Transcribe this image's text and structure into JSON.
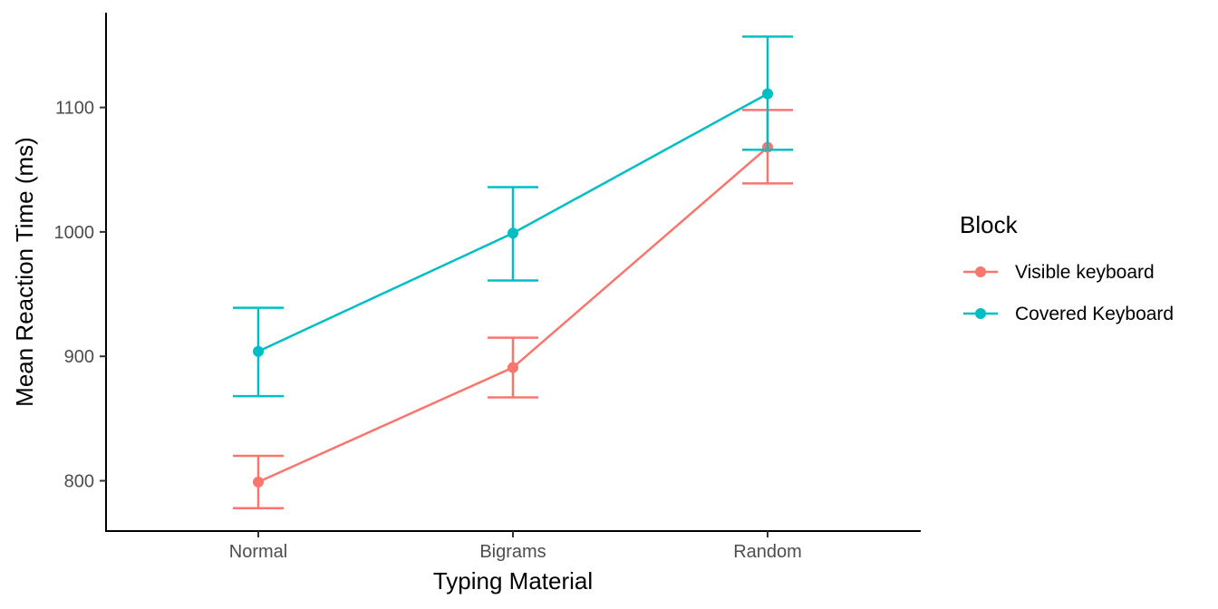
{
  "chart_data": {
    "type": "line",
    "title": "",
    "xlabel": "Typing Material",
    "ylabel": "Mean Reaction Time (ms)",
    "categories": [
      "Normal",
      "Bigrams",
      "Random"
    ],
    "ylim": [
      760,
      1160
    ],
    "yticks": [
      800,
      900,
      1000,
      1100
    ],
    "grid": false,
    "legend": {
      "title": "Block",
      "position": "right"
    },
    "series": [
      {
        "name": "Visible keyboard",
        "color": "#F8766D",
        "values": [
          799,
          891,
          1068
        ],
        "error_low": [
          778,
          867,
          1039
        ],
        "error_high": [
          820,
          915,
          1098
        ]
      },
      {
        "name": "Covered Keyboard",
        "color": "#00BFC4",
        "values": [
          904,
          999,
          1111
        ],
        "error_low": [
          868,
          961,
          1066
        ],
        "error_high": [
          939,
          1036,
          1157
        ]
      }
    ]
  }
}
